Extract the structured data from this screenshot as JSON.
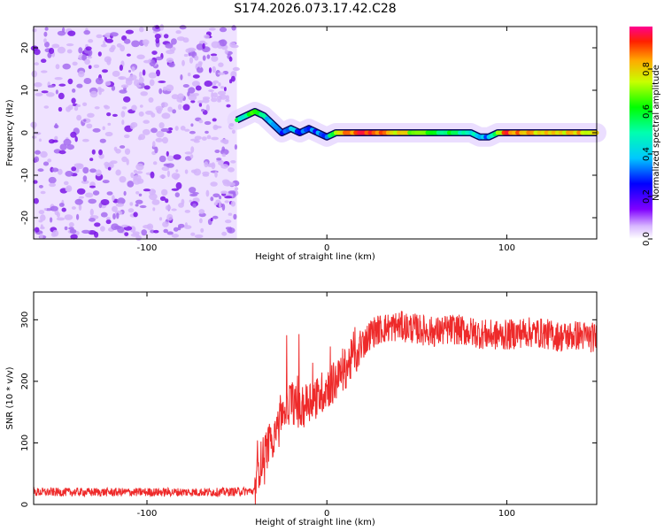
{
  "title": "S174.2026.073.17.42.C28",
  "chart_data": [
    {
      "type": "heatmap",
      "xlabel": "Height of straight line (km)",
      "ylabel": "Frequency (Hz)",
      "xlim": [
        -163,
        150
      ],
      "ylim": [
        -25,
        25
      ],
      "xticks": [
        -100,
        0,
        100
      ],
      "yticks": [
        -20,
        -10,
        0,
        10,
        20
      ],
      "colorbar": {
        "label": "Normalized spectral amplitude",
        "range": [
          0,
          1
        ],
        "ticks": [
          0.0,
          0.2,
          0.4,
          0.6,
          0.8
        ]
      },
      "noise_region_x": [
        -163,
        -50
      ],
      "signal_trace": {
        "x": [
          -50,
          -45,
          -40,
          -35,
          -30,
          -25,
          -20,
          -15,
          -10,
          -5,
          0,
          5,
          10,
          20,
          40,
          60,
          80,
          85,
          90,
          95,
          100,
          120,
          140,
          150
        ],
        "freq": [
          3,
          4,
          5,
          4,
          2,
          0,
          1,
          0,
          1,
          0,
          -1,
          0,
          0,
          0,
          0,
          0,
          0,
          -1,
          -1,
          0,
          0,
          0,
          0,
          0
        ],
        "amplitude": [
          0.5,
          0.5,
          0.7,
          0.5,
          0.3,
          0.3,
          0.4,
          0.3,
          0.3,
          0.3,
          0.3,
          0.7,
          0.9,
          0.9,
          0.8,
          0.6,
          0.5,
          0.4,
          0.3,
          0.6,
          0.9,
          0.8,
          0.8,
          0.8
        ]
      }
    },
    {
      "type": "line",
      "xlabel": "Height of straight line (km)",
      "ylabel": "SNR (10 * v/v)",
      "xlim": [
        -163,
        150
      ],
      "ylim": [
        0,
        345
      ],
      "xticks": [
        -100,
        0,
        100
      ],
      "yticks": [
        0,
        100,
        200,
        300
      ],
      "color": "#ee2a2a",
      "series": [
        {
          "name": "SNR",
          "x": [
            -163,
            -140,
            -120,
            -100,
            -80,
            -60,
            -40,
            -38,
            -35,
            -32,
            -30,
            -27,
            -25,
            -22,
            -20,
            -15,
            -10,
            -5,
            0,
            5,
            10,
            15,
            20,
            25,
            30,
            40,
            50,
            60,
            70,
            80,
            90,
            100,
            110,
            120,
            130,
            140,
            150
          ],
          "y": [
            20,
            20,
            20,
            20,
            20,
            20,
            22,
            60,
            80,
            100,
            110,
            140,
            150,
            160,
            170,
            150,
            170,
            175,
            190,
            200,
            220,
            240,
            260,
            280,
            285,
            290,
            285,
            280,
            285,
            280,
            275,
            275,
            280,
            278,
            272,
            275,
            270
          ]
        }
      ]
    }
  ]
}
